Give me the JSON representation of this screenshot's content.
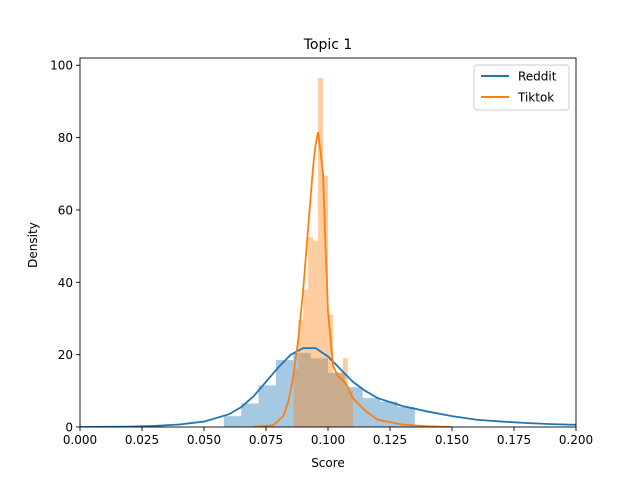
{
  "chart_data": {
    "type": "histogram-kde",
    "title": "Topic 1",
    "xlabel": "Score",
    "ylabel": "Density",
    "xlim": [
      0,
      0.2
    ],
    "ylim": [
      0,
      102
    ],
    "xticks": [
      "0.000",
      "0.025",
      "0.050",
      "0.075",
      "0.100",
      "0.125",
      "0.150",
      "0.175",
      "0.200"
    ],
    "yticks": [
      "0",
      "20",
      "40",
      "60",
      "80",
      "100"
    ],
    "legend": {
      "position": "top-right",
      "entries": [
        "Reddit",
        "Tiktok"
      ]
    },
    "series": [
      {
        "name": "Reddit",
        "color": "#1f77b4",
        "hist": {
          "edges": [
            0.058,
            0.065,
            0.072,
            0.079,
            0.086,
            0.093,
            0.1,
            0.107,
            0.114,
            0.121,
            0.128,
            0.135
          ],
          "heights": [
            3,
            6.5,
            11.5,
            18.5,
            20.5,
            19,
            15,
            11,
            8,
            7,
            5.5
          ]
        },
        "kde": {
          "x": [
            0,
            0.02,
            0.03,
            0.04,
            0.05,
            0.06,
            0.065,
            0.07,
            0.075,
            0.08,
            0.085,
            0.09,
            0.095,
            0.1,
            0.105,
            0.11,
            0.115,
            0.12,
            0.13,
            0.14,
            0.15,
            0.16,
            0.17,
            0.18,
            0.19,
            0.2
          ],
          "y": [
            0,
            0.1,
            0.3,
            0.7,
            1.5,
            3.5,
            5.5,
            8.5,
            12.5,
            16.5,
            20,
            21.8,
            21.8,
            19.5,
            16,
            12.5,
            10,
            8,
            5.8,
            4.3,
            3.0,
            2.0,
            1.5,
            1.1,
            0.8,
            0.6
          ]
        }
      },
      {
        "name": "Tiktok",
        "color": "#ff7f0e",
        "hist": {
          "edges": [
            0.086,
            0.088,
            0.09,
            0.092,
            0.094,
            0.096,
            0.098,
            0.1,
            0.102,
            0.104,
            0.106,
            0.108,
            0.11
          ],
          "heights": [
            16,
            29.5,
            38,
            52.5,
            51.5,
            96.5,
            69.5,
            31,
            15,
            15,
            19,
            10
          ]
        },
        "kde": {
          "x": [
            0.07,
            0.078,
            0.082,
            0.084,
            0.086,
            0.088,
            0.09,
            0.092,
            0.094,
            0.095,
            0.096,
            0.097,
            0.098,
            0.099,
            0.1,
            0.102,
            0.104,
            0.106,
            0.108,
            0.11,
            0.115,
            0.12,
            0.13,
            0.14,
            0.15
          ],
          "y": [
            0,
            0.5,
            3,
            7,
            14,
            24,
            38,
            55,
            72,
            78,
            81.5,
            76,
            70,
            50,
            32,
            17,
            14,
            13,
            11,
            8,
            4.5,
            2,
            0.7,
            0.2,
            0
          ]
        }
      }
    ]
  }
}
